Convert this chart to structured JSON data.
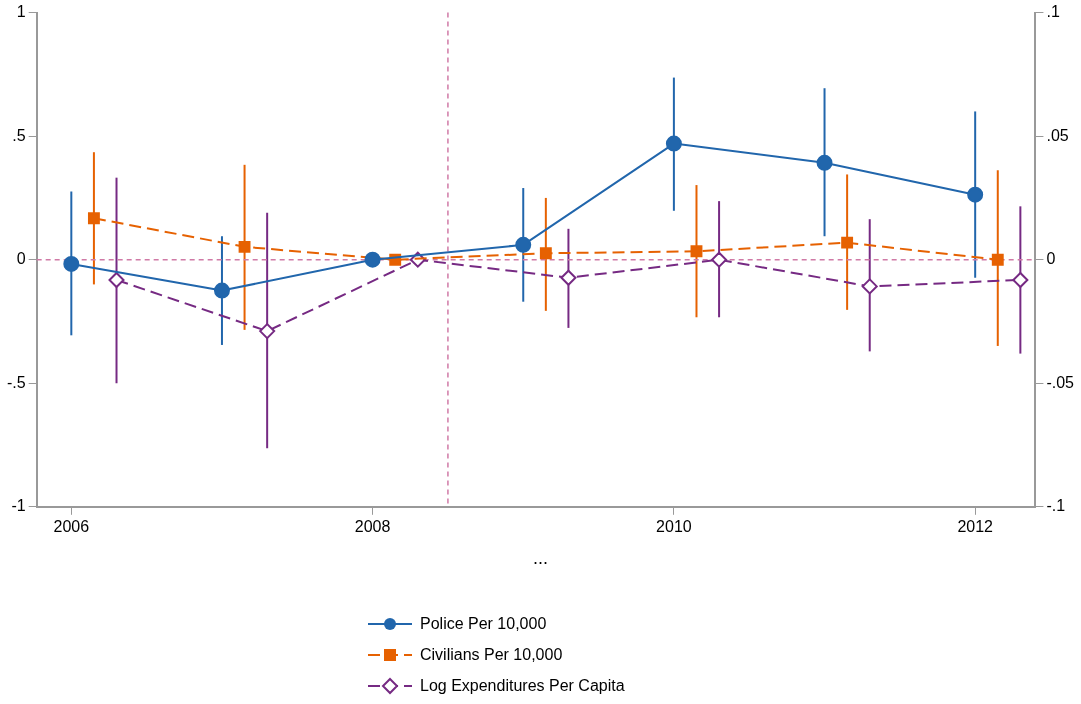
{
  "chart_data": {
    "type": "line",
    "xlabel": "...",
    "xlim": [
      2005.77,
      2012.4
    ],
    "xticks": [
      2006,
      2008,
      2010,
      2012
    ],
    "ylim": [
      -1,
      1
    ],
    "yticks": [
      {
        "value": -1,
        "label": "-1"
      },
      {
        "value": -0.5,
        "label": "-.5"
      },
      0,
      {
        "value": 0.5,
        "label": ".5"
      },
      1
    ],
    "y2lim": [
      -0.1,
      0.1
    ],
    "y2ticks": [
      {
        "value": -0.1,
        "label": "-.1"
      },
      {
        "value": -0.05,
        "label": "-.05"
      },
      0,
      {
        "value": 0.05,
        "label": ".05"
      },
      {
        "value": 0.1,
        "label": ".1"
      }
    ],
    "grid": false,
    "legend": "bottom",
    "ref_lines": [
      {
        "axis": "x",
        "value": 2008.5,
        "color": "#d07aa6",
        "line_style": "dashed"
      },
      {
        "axis": "y",
        "value": 0,
        "color": "#d07aa6",
        "line_style": "dashed"
      }
    ],
    "series": [
      {
        "name": "Police Per 10,000",
        "color": "#2166ac",
        "marker": "circle",
        "line_style": "solid",
        "x": [
          2006,
          2007,
          2008,
          2009,
          2010,
          2011,
          2012
        ],
        "values": [
          -0.017,
          -0.125,
          0,
          0.06,
          0.47,
          0.392,
          0.263
        ],
        "errors": [
          [
            -0.306,
            0.276
          ],
          [
            -0.345,
            0.095
          ],
          null,
          [
            -0.17,
            0.29
          ],
          [
            0.198,
            0.737
          ],
          [
            0.095,
            0.694
          ],
          [
            -0.073,
            0.6
          ]
        ]
      },
      {
        "name": "Civilians Per 10,000",
        "color": "#e66101",
        "marker": "square",
        "line_style": "dashed",
        "x": [
          2006.15,
          2007.15,
          2008.15,
          2009.15,
          2010.15,
          2011.15,
          2012.15
        ],
        "values": [
          0.168,
          0.052,
          0,
          0.026,
          0.034,
          0.069,
          0.0
        ],
        "errors": [
          [
            -0.1,
            0.435
          ],
          [
            -0.284,
            0.384
          ],
          null,
          [
            -0.207,
            0.25
          ],
          [
            -0.233,
            0.302
          ],
          [
            -0.203,
            0.345
          ],
          [
            -0.349,
            0.362
          ]
        ]
      },
      {
        "name": "Log Expenditures Per Capita",
        "color": "#762a83",
        "marker": "diamond",
        "line_style": "dashed",
        "axis": "y2",
        "x": [
          2006.3,
          2007.3,
          2008.3,
          2009.3,
          2010.3,
          2011.3,
          2012.3
        ],
        "values": [
          -0.0082,
          -0.0289,
          0,
          -0.0073,
          0,
          -0.0108,
          -0.0082
        ],
        "errors": [
          [
            -0.05,
            0.0332
          ],
          [
            -0.0763,
            0.019
          ],
          null,
          [
            -0.0276,
            0.0125
          ],
          [
            -0.0233,
            0.0237
          ],
          [
            -0.0371,
            0.0164
          ],
          [
            -0.038,
            0.0216
          ]
        ]
      }
    ]
  }
}
